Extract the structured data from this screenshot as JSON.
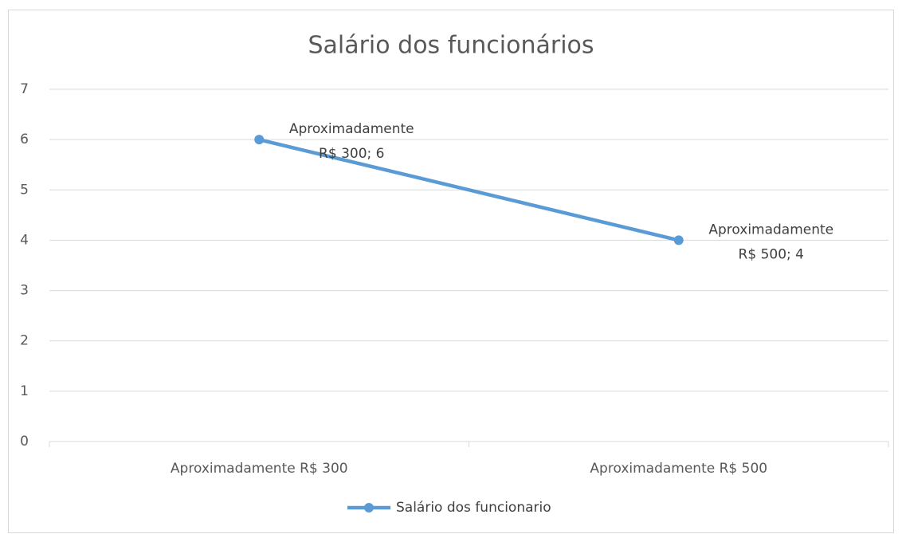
{
  "chart_data": {
    "type": "line",
    "title": "Salário dos funcionários",
    "categories": [
      "Aproximadamente R$ 300",
      "Aproximadamente R$ 500"
    ],
    "series": [
      {
        "name": "Salário dos funcionario",
        "color": "#5b9bd5",
        "values": [
          6,
          4
        ],
        "value_labels": [
          "Aproximadamente R$ 300; 6",
          "Aproximadamente R$ 500; 4"
        ]
      }
    ],
    "ylim": [
      0,
      7
    ],
    "yticks": [
      0,
      1,
      2,
      3,
      4,
      5,
      6,
      7
    ],
    "grid": true,
    "legend": "bottom"
  }
}
